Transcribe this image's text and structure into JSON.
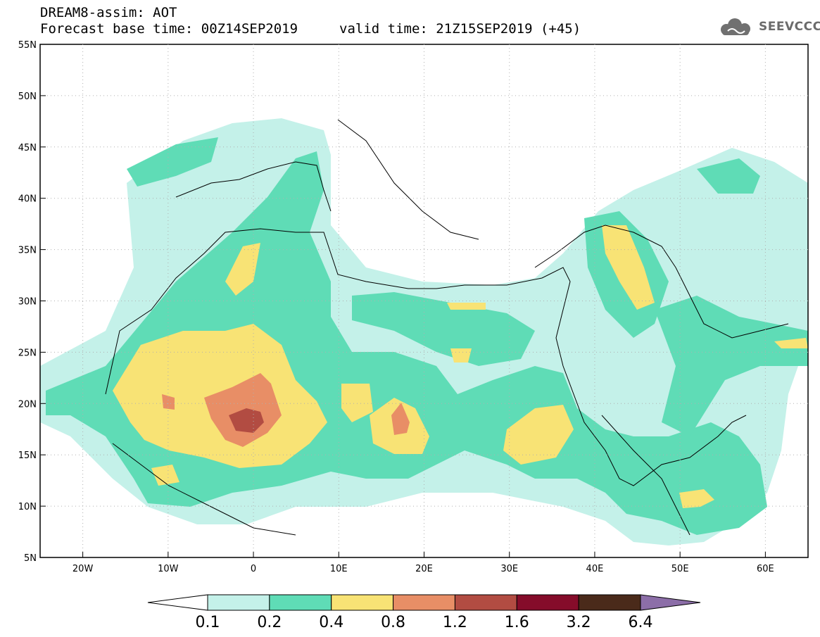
{
  "header": {
    "title_line1": "DREAM8-assim: AOT",
    "title_line2": "Forecast base time: 00Z14SEP2019",
    "valid_time": "valid time: 21Z15SEP2019 (+45)",
    "logo_text": "SEEVCCC"
  },
  "map": {
    "lon_range": [
      -25,
      65
    ],
    "lat_range": [
      5,
      55
    ],
    "lat_ticks": [
      "5N",
      "10N",
      "15N",
      "20N",
      "25N",
      "30N",
      "35N",
      "40N",
      "45N",
      "50N",
      "55N"
    ],
    "lon_ticks": [
      "20W",
      "10W",
      "0",
      "10E",
      "20E",
      "30E",
      "40E",
      "50E",
      "60E"
    ]
  },
  "colorbar": {
    "labels": [
      "0.1",
      "0.2",
      "0.4",
      "0.8",
      "1.2",
      "1.6",
      "3.2",
      "6.4"
    ],
    "colors": [
      "#ffffff",
      "#c4f1e9",
      "#5fdcb6",
      "#f8e375",
      "#e88e66",
      "#b24c42",
      "#850c2a",
      "#4a2a1a",
      "#8c6ea8"
    ]
  }
}
